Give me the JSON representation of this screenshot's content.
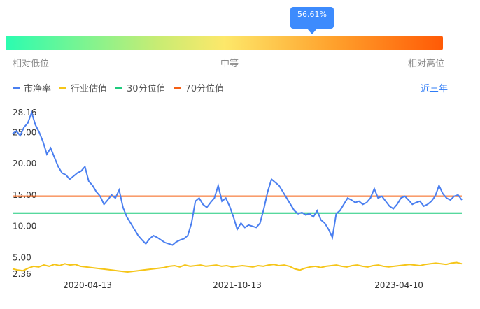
{
  "gauge": {
    "percentile_label": "56.61%",
    "percentile": 56.61,
    "low_label": "相对低位",
    "mid_label": "中等",
    "high_label": "相对高位"
  },
  "range_label": "近三年",
  "colors": {
    "pb": "#4a7ff0",
    "industry": "#f5c518",
    "p30": "#1ecb7d",
    "p70": "#f56015"
  },
  "chart_data": {
    "type": "line",
    "legend": [
      "市净率",
      "行业估值",
      "30分位值",
      "70分位值"
    ],
    "y_ticks": [
      "28.16",
      "25.00",
      "20.00",
      "15.00",
      "10.00",
      "5.00",
      "2.36"
    ],
    "ylim": [
      2.36,
      28.16
    ],
    "x_ticks": [
      "2020-04-13",
      "2021-10-13",
      "2023-04-10"
    ],
    "p30_value": 12.1,
    "p70_value": 14.8,
    "series": [
      {
        "name": "市净率",
        "values": [
          24.8,
          25.2,
          24.5,
          25.8,
          26.5,
          28.16,
          26.2,
          25.0,
          23.5,
          21.5,
          22.5,
          21.0,
          19.5,
          18.5,
          18.2,
          17.5,
          18.0,
          18.5,
          18.8,
          19.5,
          17.2,
          16.5,
          15.5,
          14.8,
          13.5,
          14.2,
          15.0,
          14.5,
          15.8,
          13.0,
          11.5,
          10.5,
          9.5,
          8.5,
          7.8,
          7.2,
          8.0,
          8.5,
          8.2,
          7.8,
          7.4,
          7.2,
          7.0,
          7.5,
          7.8,
          8.0,
          8.5,
          10.5,
          14.0,
          14.5,
          13.5,
          13.0,
          13.8,
          14.5,
          16.5,
          14.0,
          14.5,
          13.2,
          11.5,
          9.5,
          10.5,
          9.8,
          10.2,
          10.0,
          9.8,
          10.5,
          12.8,
          15.5,
          17.5,
          17.0,
          16.5,
          15.5,
          14.5,
          13.5,
          12.5,
          12.0,
          12.2,
          11.8,
          12.0,
          11.5,
          12.5,
          11.0,
          10.5,
          9.5,
          8.2,
          12.0,
          12.5,
          13.5,
          14.5,
          14.2,
          13.8,
          14.0,
          13.5,
          13.8,
          14.5,
          16.0,
          14.5,
          14.8,
          14.0,
          13.2,
          12.8,
          13.5,
          14.5,
          14.8,
          14.2,
          13.5,
          13.8,
          14.0,
          13.2,
          13.5,
          14.0,
          14.8,
          16.5,
          15.2,
          14.5,
          14.2,
          14.8,
          15.0,
          14.2
        ],
        "x_range": [
          "2019-09",
          "2024-05"
        ]
      },
      {
        "name": "行业估值",
        "values": [
          3.2,
          3.0,
          2.9,
          3.3,
          3.6,
          3.5,
          3.8,
          3.6,
          3.9,
          3.7,
          4.0,
          3.8,
          3.9,
          3.6,
          3.5,
          3.4,
          3.3,
          3.2,
          3.1,
          3.0,
          2.9,
          2.8,
          2.7,
          2.8,
          2.9,
          3.0,
          3.1,
          3.2,
          3.3,
          3.4,
          3.6,
          3.7,
          3.5,
          3.8,
          3.6,
          3.7,
          3.8,
          3.6,
          3.7,
          3.8,
          3.6,
          3.7,
          3.5,
          3.6,
          3.7,
          3.6,
          3.5,
          3.7,
          3.6,
          3.8,
          3.9,
          3.7,
          3.8,
          3.6,
          3.2,
          3.0,
          3.3,
          3.5,
          3.6,
          3.4,
          3.6,
          3.7,
          3.8,
          3.6,
          3.5,
          3.7,
          3.8,
          3.6,
          3.5,
          3.7,
          3.8,
          3.6,
          3.5,
          3.6,
          3.7,
          3.8,
          3.9,
          3.8,
          3.7,
          3.9,
          4.0,
          4.1,
          4.0,
          3.9,
          4.1,
          4.2,
          4.0
        ],
        "x_range": [
          "2019-09",
          "2024-05"
        ]
      }
    ]
  }
}
